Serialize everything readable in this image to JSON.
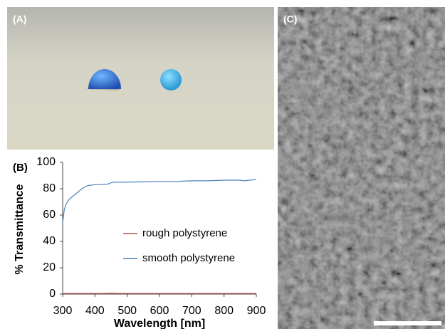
{
  "panels": {
    "a": "(A)",
    "b": "(B)",
    "c": "(C)"
  },
  "chart_data": {
    "type": "line",
    "xlabel": "Wavelength [nm]",
    "ylabel": "% Transmittance",
    "x": [
      300,
      305,
      310,
      320,
      330,
      340,
      350,
      360,
      370,
      380,
      400,
      420,
      440,
      450,
      460,
      480,
      500,
      550,
      600,
      650,
      700,
      750,
      800,
      840,
      850,
      860,
      880,
      900
    ],
    "xlim": [
      300,
      900
    ],
    "xticks": [
      300,
      400,
      500,
      600,
      700,
      800,
      900
    ],
    "ylim": [
      0,
      100
    ],
    "yticks": [
      0,
      20,
      40,
      60,
      80,
      100
    ],
    "series": [
      {
        "name": "rough polystyrene",
        "color": "#c0504d",
        "values": [
          0.5,
          0.5,
          0.5,
          0.5,
          0.5,
          0.5,
          0.5,
          0.5,
          0.5,
          0.5,
          0.5,
          0.5,
          0.6,
          0.8,
          0.6,
          0.5,
          0.5,
          0.5,
          0.5,
          0.5,
          0.5,
          0.5,
          0.5,
          0.5,
          0.5,
          0.5,
          0.5,
          0.5
        ]
      },
      {
        "name": "smooth polystyrene",
        "color": "#4f81bd",
        "values": [
          54,
          64,
          68,
          72,
          74,
          76,
          78,
          80,
          81.5,
          82.5,
          83,
          83.2,
          83.5,
          84.5,
          85,
          85,
          85,
          85.2,
          85.5,
          85.5,
          86,
          86,
          86.5,
          86.5,
          86.5,
          86,
          86.5,
          87
        ]
      }
    ]
  }
}
